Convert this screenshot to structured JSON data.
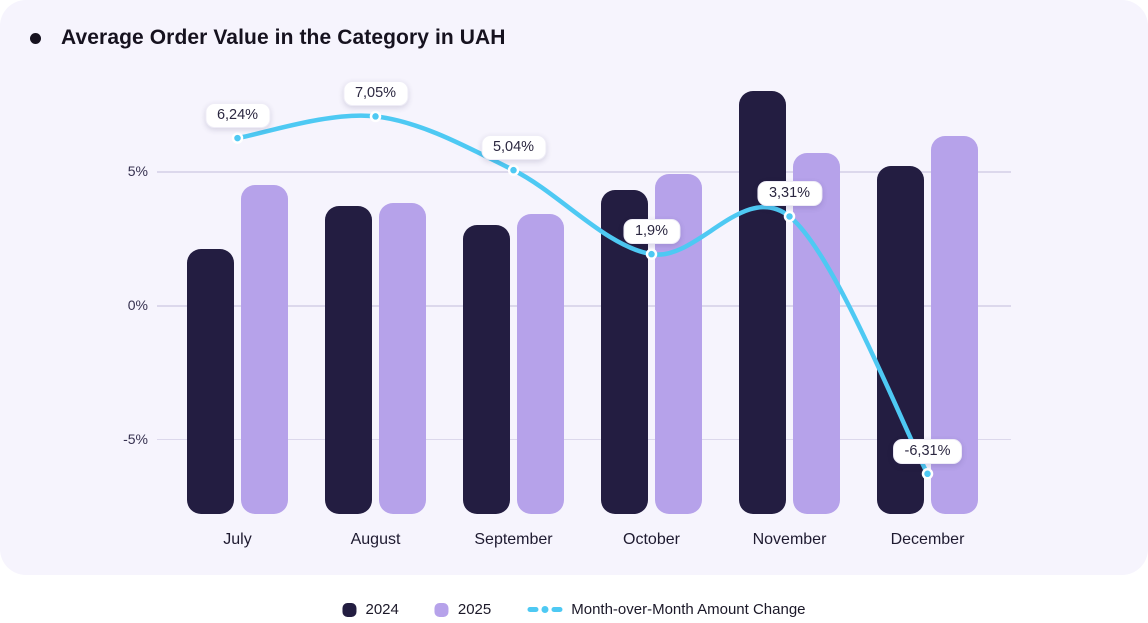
{
  "title": "Average Order Value in the Category in UAH",
  "colors": {
    "card_bg": "#f6f4fd",
    "bar_2024": "#231d41",
    "bar_2025": "#b6a2ea",
    "line": "#4ec9f3",
    "gridline": "#dcd8ec",
    "axis_text": "#363150",
    "month_text": "#1e1a30",
    "pill_bg": "#ffffff",
    "pill_text": "#2b2740",
    "title_text": "#16121f"
  },
  "legend": [
    {
      "label": "2024",
      "type": "swatch",
      "color": "#231d41"
    },
    {
      "label": "2025",
      "type": "swatch",
      "color": "#b6a2ea"
    },
    {
      "label": "Month-over-Month Amount Change",
      "type": "dash-dot-line",
      "color": "#4ec9f3"
    }
  ],
  "chart_data": {
    "type": "bar",
    "title": "Average Order Value in the Category in UAH",
    "categories": [
      "July",
      "August",
      "September",
      "October",
      "November",
      "December"
    ],
    "series": [
      {
        "name": "2024",
        "type": "bar",
        "color": "#231d41",
        "values": [
          2.1,
          3.7,
          3.0,
          4.3,
          8.0,
          5.2
        ]
      },
      {
        "name": "2025",
        "type": "bar",
        "color": "#b6a2ea",
        "values": [
          4.5,
          3.8,
          3.4,
          4.9,
          5.7,
          6.3
        ]
      },
      {
        "name": "Month-over-Month Amount Change",
        "type": "line",
        "color": "#4ec9f3",
        "values": [
          6.24,
          7.05,
          5.04,
          1.9,
          3.31,
          -6.31
        ],
        "point_labels": [
          "6,24%",
          "7,05%",
          "5,04%",
          "1,9%",
          "3,31%",
          "-6,31%"
        ]
      }
    ],
    "xlabel": "",
    "ylabel": "",
    "y_ticks": [
      {
        "label": "5%",
        "value": 5
      },
      {
        "label": "0%",
        "value": 0
      },
      {
        "label": "-5%",
        "value": -5
      }
    ],
    "bar_baseline_value": -7.8,
    "grid": "horizontal",
    "legend_position": "bottom",
    "notes": "bar values estimated from axis; line point labels shown on chart"
  }
}
